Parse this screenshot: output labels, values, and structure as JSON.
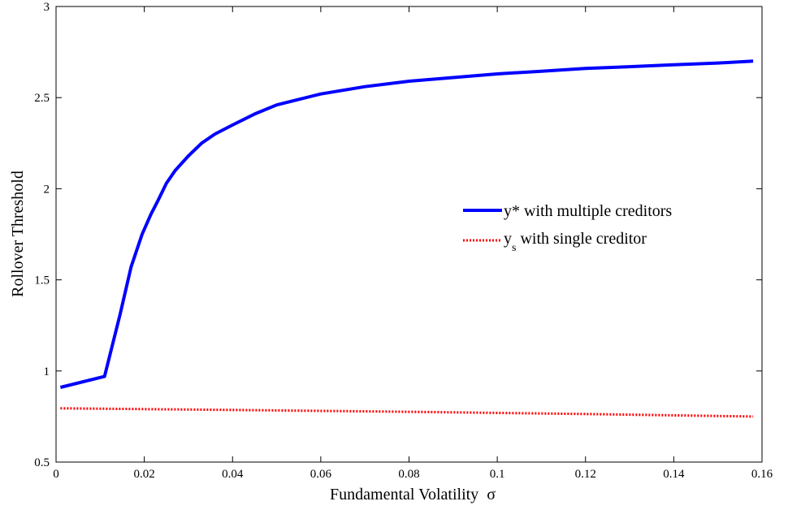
{
  "chart_data": {
    "type": "line",
    "title": "",
    "xlabel": "Fundamental Volatility",
    "xlabel_symbol": "σ",
    "ylabel": "Rollover Threshold",
    "xlim": [
      0,
      0.16
    ],
    "ylim": [
      0.5,
      3
    ],
    "x_ticks": [
      "0",
      "0.02",
      "0.04",
      "0.06",
      "0.08",
      "0.1",
      "0.12",
      "0.14",
      "0.16"
    ],
    "y_ticks": [
      "0.5",
      "1",
      "1.5",
      "2",
      "2.5",
      "3"
    ],
    "grid": false,
    "legend_position": "center-right",
    "series": [
      {
        "legend_main": "y* with multiple creditors",
        "color": "#0000ff",
        "style": "solid",
        "x": [
          0.001,
          0.011,
          0.0145,
          0.017,
          0.0195,
          0.0215,
          0.023,
          0.025,
          0.027,
          0.03,
          0.033,
          0.036,
          0.04,
          0.045,
          0.05,
          0.055,
          0.06,
          0.07,
          0.08,
          0.09,
          0.1,
          0.11,
          0.12,
          0.13,
          0.14,
          0.15,
          0.158
        ],
        "y": [
          0.91,
          0.97,
          1.31,
          1.57,
          1.75,
          1.86,
          1.93,
          2.03,
          2.1,
          2.18,
          2.25,
          2.3,
          2.35,
          2.41,
          2.46,
          2.49,
          2.52,
          2.56,
          2.59,
          2.61,
          2.63,
          2.645,
          2.66,
          2.67,
          2.68,
          2.69,
          2.7
        ]
      },
      {
        "legend_main": "y",
        "legend_sub": "s",
        "legend_rest": " with single creditor",
        "color": "#ff0000",
        "style": "dotted",
        "x": [
          0.001,
          0.04,
          0.08,
          0.12,
          0.158
        ],
        "y": [
          0.795,
          0.786,
          0.776,
          0.764,
          0.75
        ]
      }
    ]
  }
}
